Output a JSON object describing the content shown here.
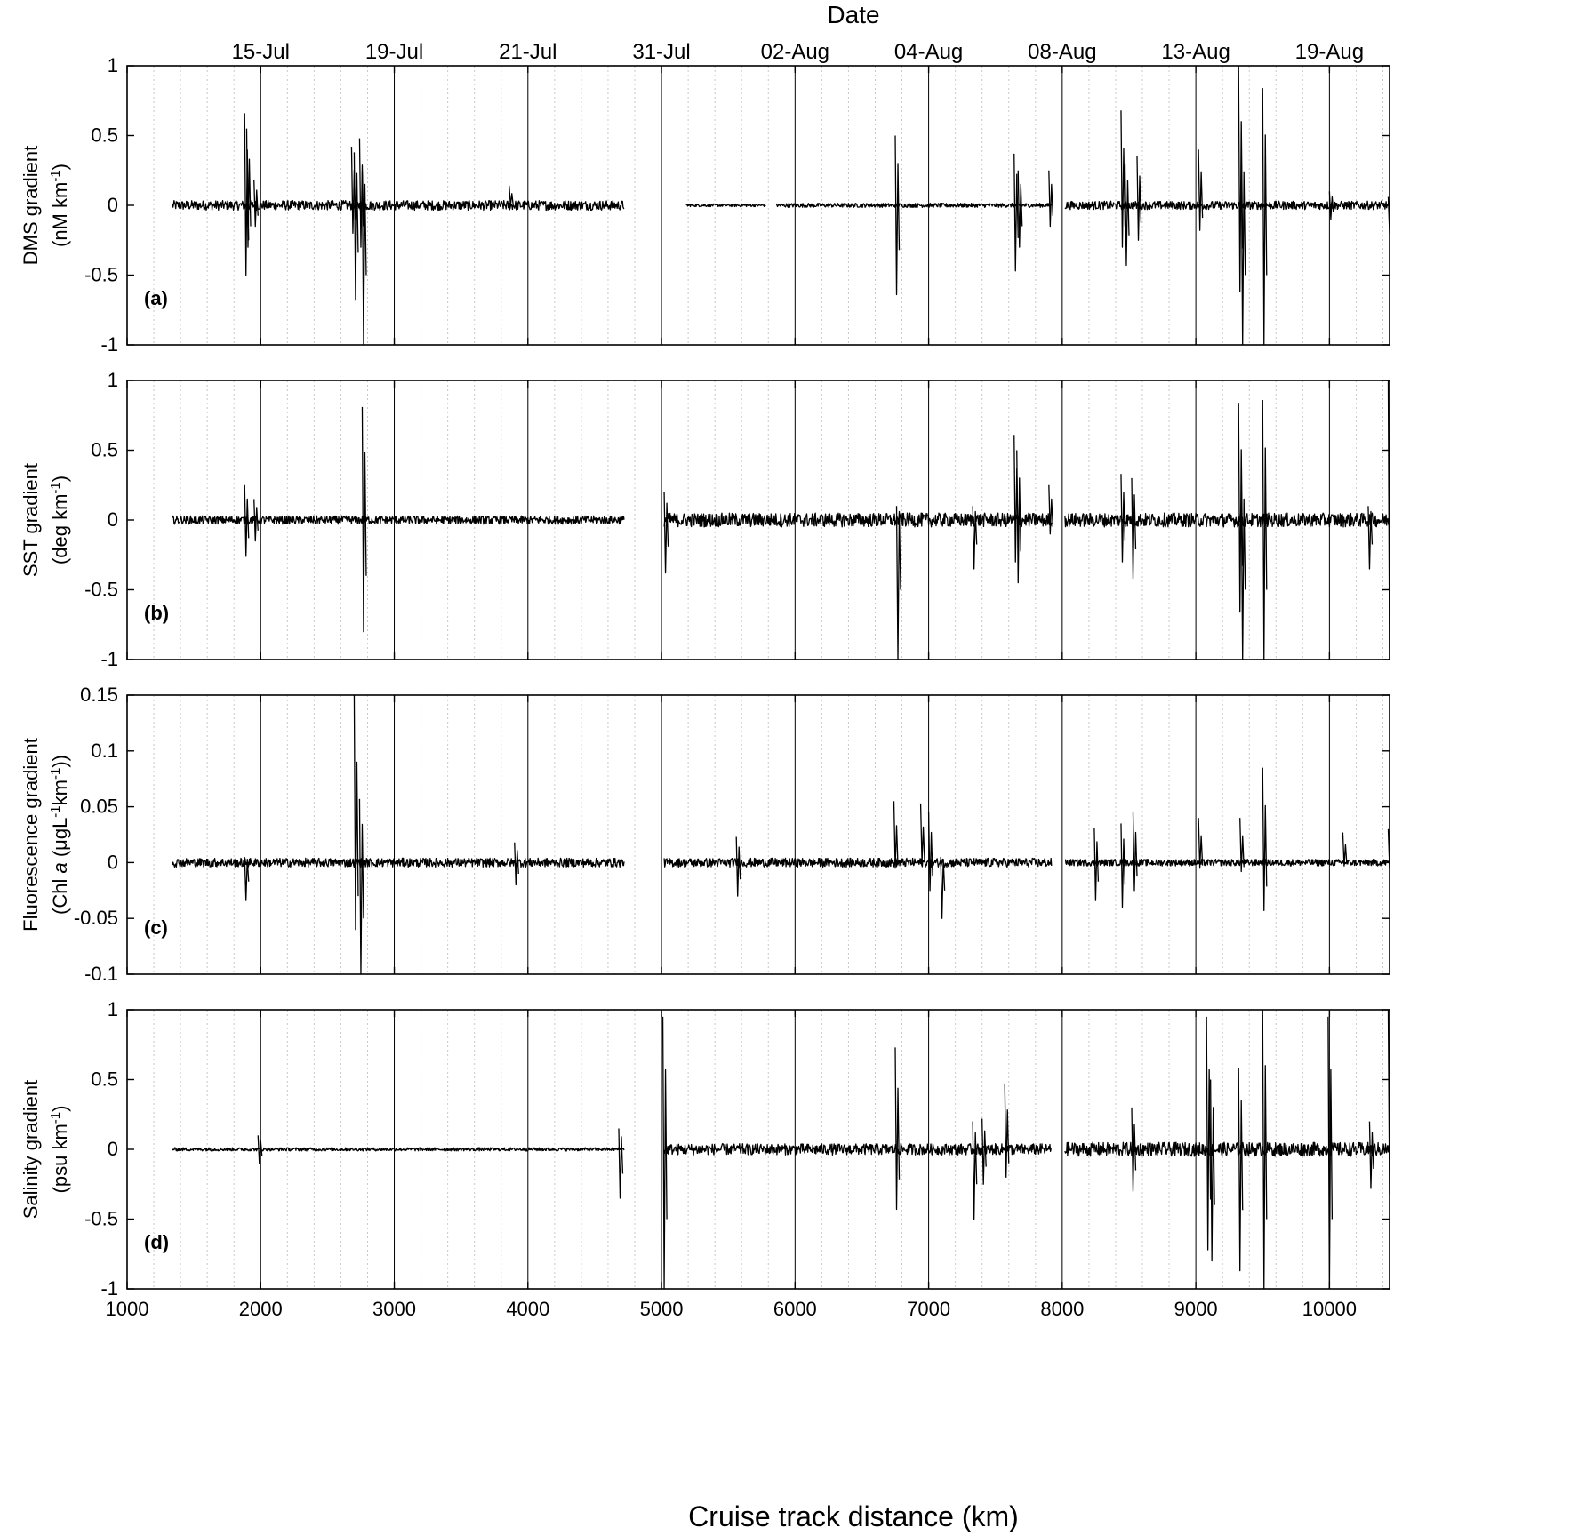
{
  "figure": {
    "top_title": "Date",
    "x_axis_title": "Cruise track distance  (km)",
    "date_labels": [
      {
        "label": "15-Jul",
        "x": 2000
      },
      {
        "label": "19-Jul",
        "x": 3000
      },
      {
        "label": "21-Jul",
        "x": 4000
      },
      {
        "label": "31-Jul",
        "x": 5000
      },
      {
        "label": "02-Aug",
        "x": 6000
      },
      {
        "label": "04-Aug",
        "x": 7000
      },
      {
        "label": "08-Aug",
        "x": 8000
      },
      {
        "label": "13-Aug",
        "x": 9000
      },
      {
        "label": "19-Aug",
        "x": 10000
      }
    ],
    "x_tick_labels": [
      "1000",
      "2000",
      "3000",
      "4000",
      "5000",
      "6000",
      "7000",
      "8000",
      "9000",
      "10000"
    ],
    "panels": [
      {
        "letter": "(a)",
        "ylabel_line1": "DMS gradient",
        "ylabel_line2": "(nM km",
        "ylabel_sup": "-1",
        "ylabel_end": ")",
        "y_tick_labels": [
          "1",
          "0.5",
          "0",
          "-0.5",
          "-1"
        ]
      },
      {
        "letter": "(b)",
        "ylabel_line1": "SST gradient",
        "ylabel_line2": "(deg km",
        "ylabel_sup": "-1",
        "ylabel_end": ")",
        "y_tick_labels": [
          "1",
          "0.5",
          "0",
          "-0.5",
          "-1"
        ]
      },
      {
        "letter": "(c)",
        "ylabel_line1": "Fluorescence gradient",
        "ylabel_line2a": "(Chl ",
        "ylabel_italic": "a",
        "ylabel_line2b": "  (μgL",
        "ylabel_sup1": "-1",
        "ylabel_mid": "km",
        "ylabel_sup2": "-1",
        "ylabel_end": "))",
        "y_tick_labels": [
          "0.15",
          "0.1",
          "0.05",
          "0",
          "-0.05",
          "-0.1"
        ]
      },
      {
        "letter": "(d)",
        "ylabel_line1": "Salinity gradient",
        "ylabel_line2": "(psu km",
        "ylabel_sup": "-1",
        "ylabel_end": ")",
        "y_tick_labels": [
          "1",
          "0.5",
          "0",
          "-0.5",
          "-1"
        ]
      }
    ]
  },
  "chart_data": [
    {
      "type": "line",
      "panel": "a",
      "xlabel": "Cruise track distance  (km)",
      "ylabel": "DMS gradient (nM km-1)",
      "xlim": [
        1000,
        10450
      ],
      "ylim": [
        -1,
        1
      ],
      "y_ticks": [
        -1,
        -0.5,
        0,
        0.5,
        1
      ],
      "grid": "vertical",
      "minor_grid_step": 200,
      "major_grid_step": 1000,
      "segments": [
        {
          "baseline": 0,
          "x_start": 1340,
          "x_end": 4720,
          "noise": 0.035
        },
        {
          "baseline": 0,
          "x_start": 5180,
          "x_end": 5780,
          "noise": 0.01
        },
        {
          "baseline": 0,
          "x_start": 5860,
          "x_end": 7920,
          "noise": 0.015
        },
        {
          "baseline": 0,
          "x_start": 8020,
          "x_end": 10450,
          "noise": 0.03
        }
      ],
      "spikes": [
        {
          "x": 1880,
          "min": -0.5,
          "max": 0.66
        },
        {
          "x": 1895,
          "min": -0.3,
          "max": 0.55
        },
        {
          "x": 1950,
          "min": -0.15,
          "max": 0.18
        },
        {
          "x": 2680,
          "min": -0.2,
          "max": 0.42
        },
        {
          "x": 2700,
          "min": -0.68,
          "max": 0.38
        },
        {
          "x": 2740,
          "min": -0.3,
          "max": 0.48
        },
        {
          "x": 2760,
          "min": -1,
          "max": 0.25
        },
        {
          "x": 3860,
          "min": 0,
          "max": 0.14
        },
        {
          "x": 6750,
          "min": -0.64,
          "max": 0.5
        },
        {
          "x": 7640,
          "min": -0.47,
          "max": 0.37
        },
        {
          "x": 7670,
          "min": -0.3,
          "max": 0.25
        },
        {
          "x": 7900,
          "min": -0.15,
          "max": 0.25
        },
        {
          "x": 8440,
          "min": -0.3,
          "max": 0.68
        },
        {
          "x": 8470,
          "min": -0.43,
          "max": 0.3
        },
        {
          "x": 8560,
          "min": -0.25,
          "max": 0.35
        },
        {
          "x": 9020,
          "min": -0.18,
          "max": 0.4
        },
        {
          "x": 9320,
          "min": -0.62,
          "max": 1.0
        },
        {
          "x": 9340,
          "min": -1,
          "max": 0.4
        },
        {
          "x": 9500,
          "min": -1,
          "max": 0.84
        },
        {
          "x": 10000,
          "min": -0.1,
          "max": 0.1
        },
        {
          "x": 10440,
          "min": -0.2,
          "max": 0.06
        }
      ]
    },
    {
      "type": "line",
      "panel": "b",
      "xlabel": "Cruise track distance  (km)",
      "ylabel": "SST gradient (deg km-1)",
      "xlim": [
        1000,
        10450
      ],
      "ylim": [
        -1,
        1
      ],
      "y_ticks": [
        -1,
        -0.5,
        0,
        0.5,
        1
      ],
      "grid": "vertical",
      "segments": [
        {
          "baseline": 0,
          "x_start": 1340,
          "x_end": 4720,
          "noise": 0.03
        },
        {
          "baseline": 0,
          "x_start": 5020,
          "x_end": 7920,
          "noise": 0.05
        },
        {
          "baseline": 0,
          "x_start": 8020,
          "x_end": 10450,
          "noise": 0.05
        }
      ],
      "spikes": [
        {
          "x": 1880,
          "min": -0.26,
          "max": 0.25
        },
        {
          "x": 1950,
          "min": -0.15,
          "max": 0.15
        },
        {
          "x": 2760,
          "min": -0.8,
          "max": 0.81
        },
        {
          "x": 5020,
          "min": -0.38,
          "max": 0.2
        },
        {
          "x": 6760,
          "min": -1,
          "max": 0.1
        },
        {
          "x": 7330,
          "min": -0.35,
          "max": 0.1
        },
        {
          "x": 7640,
          "min": -0.3,
          "max": 0.61
        },
        {
          "x": 7660,
          "min": -0.45,
          "max": 0.5
        },
        {
          "x": 7900,
          "min": -0.1,
          "max": 0.25
        },
        {
          "x": 8440,
          "min": -0.3,
          "max": 0.33
        },
        {
          "x": 8520,
          "min": -0.42,
          "max": 0.3
        },
        {
          "x": 9320,
          "min": -0.66,
          "max": 0.84
        },
        {
          "x": 9340,
          "min": -1,
          "max": 0.25
        },
        {
          "x": 9500,
          "min": -1,
          "max": 0.86
        },
        {
          "x": 10290,
          "min": -0.35,
          "max": 0.1
        },
        {
          "x": 10440,
          "min": -1,
          "max": 1.0
        }
      ]
    },
    {
      "type": "line",
      "panel": "c",
      "xlabel": "Cruise track distance  (km)",
      "ylabel": "Fluorescence gradient (Chl a (μgL-1 km-1))",
      "xlim": [
        1000,
        10450
      ],
      "ylim": [
        -0.1,
        0.15
      ],
      "y_ticks": [
        -0.1,
        -0.05,
        0,
        0.05,
        0.1,
        0.15
      ],
      "grid": "vertical",
      "segments": [
        {
          "baseline": 0,
          "x_start": 1340,
          "x_end": 4720,
          "noise": 0.004
        },
        {
          "baseline": 0,
          "x_start": 5020,
          "x_end": 7920,
          "noise": 0.004
        },
        {
          "baseline": 0,
          "x_start": 8020,
          "x_end": 10450,
          "noise": 0.003
        }
      ],
      "spikes": [
        {
          "x": 1880,
          "min": -0.034,
          "max": 0.005
        },
        {
          "x": 2700,
          "min": -0.06,
          "max": 0.15
        },
        {
          "x": 2740,
          "min": -0.1,
          "max": 0.057
        },
        {
          "x": 3900,
          "min": -0.02,
          "max": 0.018
        },
        {
          "x": 5560,
          "min": -0.03,
          "max": 0.023
        },
        {
          "x": 6740,
          "min": -0.005,
          "max": 0.055
        },
        {
          "x": 6940,
          "min": 0,
          "max": 0.053
        },
        {
          "x": 7000,
          "min": -0.025,
          "max": 0.045
        },
        {
          "x": 7090,
          "min": -0.05,
          "max": 0.005
        },
        {
          "x": 8240,
          "min": -0.034,
          "max": 0.031
        },
        {
          "x": 8440,
          "min": -0.04,
          "max": 0.035
        },
        {
          "x": 8530,
          "min": -0.025,
          "max": 0.045
        },
        {
          "x": 9020,
          "min": -0.005,
          "max": 0.04
        },
        {
          "x": 9330,
          "min": -0.008,
          "max": 0.04
        },
        {
          "x": 9500,
          "min": -0.043,
          "max": 0.085
        },
        {
          "x": 10100,
          "min": -0.003,
          "max": 0.027
        },
        {
          "x": 10440,
          "min": -0.005,
          "max": 0.03
        }
      ]
    },
    {
      "type": "line",
      "panel": "d",
      "xlabel": "Cruise track distance  (km)",
      "ylabel": "Salinity gradient (psu km-1)",
      "xlim": [
        1000,
        10450
      ],
      "ylim": [
        -1,
        1
      ],
      "y_ticks": [
        -1,
        -0.5,
        0,
        0.5,
        1
      ],
      "grid": "vertical",
      "segments": [
        {
          "baseline": 0,
          "x_start": 1340,
          "x_end": 4720,
          "noise": 0.012
        },
        {
          "baseline": 0,
          "x_start": 5020,
          "x_end": 7920,
          "noise": 0.04
        },
        {
          "baseline": 0,
          "x_start": 8020,
          "x_end": 10450,
          "noise": 0.05
        }
      ],
      "spikes": [
        {
          "x": 1980,
          "min": -0.1,
          "max": 0.1
        },
        {
          "x": 4680,
          "min": -0.35,
          "max": 0.15
        },
        {
          "x": 5010,
          "min": -1,
          "max": 0.95
        },
        {
          "x": 6750,
          "min": -0.43,
          "max": 0.73
        },
        {
          "x": 7330,
          "min": -0.5,
          "max": 0.2
        },
        {
          "x": 7400,
          "min": -0.25,
          "max": 0.22
        },
        {
          "x": 7570,
          "min": -0.2,
          "max": 0.47
        },
        {
          "x": 8520,
          "min": -0.3,
          "max": 0.3
        },
        {
          "x": 9080,
          "min": -0.72,
          "max": 0.95
        },
        {
          "x": 9110,
          "min": -0.8,
          "max": 0.5
        },
        {
          "x": 9320,
          "min": -0.87,
          "max": 0.58
        },
        {
          "x": 9500,
          "min": -1,
          "max": 1.0
        },
        {
          "x": 9990,
          "min": -1,
          "max": 0.95
        },
        {
          "x": 10300,
          "min": -0.28,
          "max": 0.2
        },
        {
          "x": 10440,
          "min": -0.32,
          "max": 1.0
        }
      ]
    }
  ]
}
